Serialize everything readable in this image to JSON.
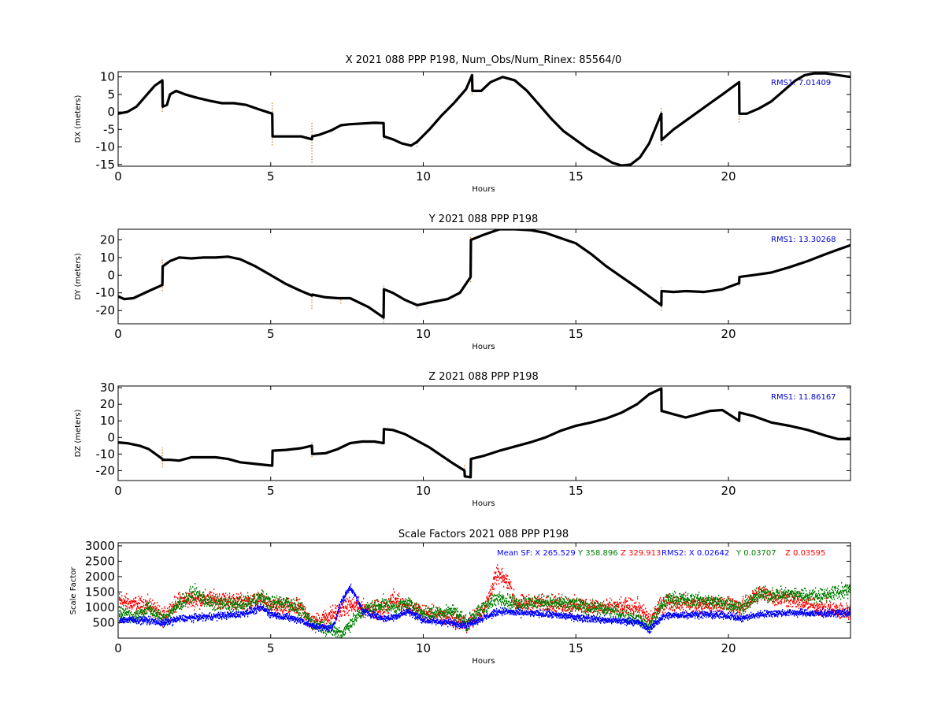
{
  "colors": {
    "line": "#000000",
    "outlier": "#cc7722",
    "rms": "#0000cc",
    "sf_x": "#0000ff",
    "sf_y": "#008000",
    "sf_z": "#ff0000"
  },
  "chart_data": [
    {
      "type": "line",
      "title": "X 2021 088 PPP  P198, Num_Obs/Num_Rinex: 85564/0",
      "xlabel": "Hours",
      "ylabel": "DX (meters)",
      "xlim": [
        0,
        24
      ],
      "ylim": [
        -15.5,
        11.5
      ],
      "xticks": [
        0,
        5,
        10,
        15,
        20
      ],
      "yticks": [
        -15,
        -10,
        -5,
        0,
        5,
        10
      ],
      "rms_label": "RMS1:  7.01409",
      "series": [
        {
          "x": [
            0,
            0.3,
            0.6,
            0.9,
            1.2,
            1.45,
            1.46,
            1.6,
            1.7,
            1.9,
            2.2,
            2.6,
            3.0,
            3.4,
            3.8,
            4.2,
            4.6,
            5.05,
            5.06,
            5.5,
            6.0,
            6.35,
            6.36,
            6.6,
            7.0,
            7.3,
            7.6,
            8.0,
            8.4,
            8.7,
            8.71,
            9.0,
            9.3,
            9.6,
            9.8,
            10.2,
            10.6,
            11.0,
            11.4,
            11.6,
            11.61,
            11.9,
            12.2,
            12.6,
            13.0,
            13.4,
            13.8,
            14.2,
            14.6,
            15.0,
            15.4,
            15.8,
            16.2,
            16.5,
            16.8,
            17.1,
            17.4,
            17.8,
            17.81,
            18.2,
            18.6,
            19.0,
            19.4,
            19.8,
            20.35,
            20.36,
            20.6,
            21.0,
            21.4,
            21.8,
            22.2,
            22.5,
            22.8,
            23.2,
            23.6,
            24
          ],
          "y": [
            -0.5,
            0,
            1.5,
            4.5,
            7.5,
            9,
            1.5,
            2,
            5,
            6,
            5,
            4,
            3.2,
            2.5,
            2.5,
            2,
            0.8,
            -0.5,
            -7,
            -7,
            -7,
            -7.8,
            -7,
            -6.5,
            -5.2,
            -3.8,
            -3.5,
            -3.3,
            -3.1,
            -3.2,
            -7,
            -7.8,
            -9,
            -9.6,
            -8.5,
            -5,
            -1,
            2.5,
            6.5,
            10.5,
            6,
            6,
            8.5,
            10,
            9,
            6,
            2,
            -2,
            -5.5,
            -8,
            -10.5,
            -12.5,
            -14.5,
            -15.3,
            -15,
            -13,
            -9,
            -0.5,
            -8,
            -5,
            -2.5,
            0,
            2.5,
            5,
            8.5,
            -0.5,
            -0.5,
            1,
            3,
            6,
            9,
            10.5,
            11,
            11,
            10.5,
            10
          ]
        }
      ],
      "outliers": [
        {
          "x": 1.45,
          "y": [
            0,
            9
          ]
        },
        {
          "x": 5.05,
          "y": [
            -9.5,
            3
          ]
        },
        {
          "x": 6.35,
          "y": [
            -14.5,
            -3
          ]
        },
        {
          "x": 8.7,
          "y": [
            -8,
            -3
          ]
        },
        {
          "x": 9.8,
          "y": [
            -10,
            -8
          ]
        },
        {
          "x": 11.6,
          "y": [
            5,
            11
          ]
        },
        {
          "x": 17.8,
          "y": [
            -9.5,
            1.5
          ]
        },
        {
          "x": 20.35,
          "y": [
            -3,
            5
          ]
        }
      ]
    },
    {
      "type": "line",
      "title": "Y 2021 088 PPP  P198",
      "xlabel": "Hours",
      "ylabel": "DY (meters)",
      "xlim": [
        0,
        24
      ],
      "ylim": [
        -27.5,
        26
      ],
      "xticks": [
        0,
        5,
        10,
        15,
        20
      ],
      "yticks": [
        -20,
        -10,
        0,
        10,
        20
      ],
      "rms_label": "RMS1: 13.30268",
      "series": [
        {
          "x": [
            0,
            0.2,
            0.5,
            1.0,
            1.45,
            1.46,
            1.7,
            2.0,
            2.4,
            2.8,
            3.2,
            3.6,
            4.0,
            4.5,
            5.0,
            5.5,
            6.0,
            6.35,
            6.36,
            6.8,
            7.2,
            7.6,
            8.2,
            8.7,
            8.71,
            9.0,
            9.4,
            9.8,
            10.2,
            10.8,
            11.2,
            11.55,
            11.56,
            12.0,
            12.5,
            13.0,
            13.5,
            14.0,
            14.5,
            15.0,
            15.5,
            16.0,
            16.5,
            17.0,
            17.4,
            17.8,
            17.81,
            18.2,
            18.6,
            19.2,
            19.8,
            20.35,
            20.36,
            20.8,
            21.4,
            22.0,
            22.6,
            23.2,
            23.6,
            24
          ],
          "y": [
            -12,
            -13.5,
            -13,
            -9,
            -5.5,
            5,
            8,
            10,
            9.5,
            10,
            10,
            10.5,
            9,
            5,
            0,
            -5,
            -9,
            -11.5,
            -11,
            -12.5,
            -13,
            -13,
            -18,
            -24,
            -8,
            -10,
            -14,
            -17,
            -15.5,
            -13.5,
            -10,
            -1,
            20,
            23,
            26,
            26,
            25.5,
            24,
            21,
            18,
            12,
            5,
            -1,
            -7,
            -12,
            -17,
            -9,
            -9.5,
            -9,
            -9.5,
            -8,
            -4.5,
            -1,
            0,
            1.5,
            4.5,
            8,
            12,
            14.5,
            17
          ]
        }
      ],
      "outliers": [
        {
          "x": 1.45,
          "y": [
            -9,
            9
          ]
        },
        {
          "x": 6.35,
          "y": [
            -19,
            -10
          ]
        },
        {
          "x": 7.3,
          "y": [
            -16,
            -13
          ]
        },
        {
          "x": 8.7,
          "y": [
            -27,
            -5
          ]
        },
        {
          "x": 9.8,
          "y": [
            -19,
            -16
          ]
        },
        {
          "x": 11.55,
          "y": [
            -4,
            22
          ]
        },
        {
          "x": 17.8,
          "y": [
            -20,
            -7
          ]
        },
        {
          "x": 20.35,
          "y": [
            -6,
            0
          ]
        }
      ]
    },
    {
      "type": "line",
      "title": "Z 2021 088 PPP  P198",
      "xlabel": "Hours",
      "ylabel": "DZ (meters)",
      "xlim": [
        0,
        24
      ],
      "ylim": [
        -26,
        31
      ],
      "xticks": [
        0,
        5,
        10,
        15,
        20
      ],
      "yticks": [
        -20,
        -10,
        0,
        10,
        20,
        30
      ],
      "rms_label": "RMS1: 11.86167",
      "series": [
        {
          "x": [
            0,
            0.3,
            0.7,
            1.0,
            1.45,
            1.46,
            1.7,
            2.0,
            2.4,
            2.8,
            3.2,
            3.6,
            4.0,
            4.5,
            5.05,
            5.06,
            5.5,
            6.0,
            6.35,
            6.36,
            6.8,
            7.2,
            7.6,
            8.0,
            8.4,
            8.7,
            8.71,
            9.0,
            9.4,
            9.8,
            10.2,
            10.6,
            11.0,
            11.35,
            11.36,
            11.55,
            11.56,
            12.0,
            12.5,
            13.0,
            13.5,
            14.0,
            14.5,
            15.0,
            15.5,
            16.0,
            16.5,
            17.0,
            17.4,
            17.8,
            17.81,
            18.2,
            18.6,
            19.0,
            19.4,
            19.8,
            20.35,
            20.36,
            20.8,
            21.4,
            22.0,
            22.6,
            23.2,
            23.6,
            24
          ],
          "y": [
            -3,
            -3.5,
            -5,
            -7,
            -13,
            -13.5,
            -13.5,
            -14,
            -12,
            -12,
            -12,
            -13,
            -15,
            -16,
            -17,
            -8,
            -7.5,
            -6.5,
            -5,
            -10,
            -9.5,
            -7,
            -3.5,
            -2.5,
            -2.5,
            -3.5,
            5,
            4.5,
            2,
            -2,
            -6,
            -11,
            -16,
            -20,
            -23.5,
            -24,
            -13,
            -11,
            -8,
            -5.5,
            -3,
            0,
            4,
            7,
            9,
            11.5,
            15,
            20,
            26,
            29.5,
            16,
            14,
            12,
            14,
            16,
            16.5,
            10,
            15,
            13,
            9,
            7,
            4.5,
            1,
            -1,
            -1
          ]
        }
      ],
      "outliers": [
        {
          "x": 1.45,
          "y": [
            -18,
            -6
          ]
        },
        {
          "x": 5.05,
          "y": [
            -17,
            -7
          ]
        },
        {
          "x": 6.35,
          "y": [
            -12,
            -3
          ]
        },
        {
          "x": 8.7,
          "y": [
            -4,
            6
          ]
        },
        {
          "x": 11.35,
          "y": [
            -24,
            -16
          ]
        },
        {
          "x": 17.8,
          "y": [
            15,
            30
          ]
        },
        {
          "x": 20.35,
          "y": [
            10,
            16
          ]
        }
      ]
    },
    {
      "type": "scatter",
      "title": "Scale Factors 2021 088 PPP  P198",
      "xlabel": "Hours",
      "ylabel": "Scale Factor",
      "xlim": [
        0,
        24
      ],
      "ylim": [
        0,
        3100
      ],
      "xticks": [
        0,
        5,
        10,
        15,
        20
      ],
      "yticks": [
        500,
        1000,
        1500,
        2000,
        2500,
        3000
      ],
      "annotation": {
        "mean_sf": "Mean SF: X 265.529",
        "y_sf": "Y 358.896",
        "z_sf": "Z 329.913",
        "rms2": "RMS2: X  0.02642",
        "y_rms": "Y  0.03707",
        "z_rms": "Z  0.03595"
      },
      "series": [
        {
          "name": "X",
          "x": [
            0,
            1,
            1.45,
            2,
            3,
            4,
            4.7,
            5,
            6,
            6.35,
            7,
            7.3,
            7.6,
            8,
            8.7,
            9,
            9.5,
            10,
            11,
            11.4,
            12,
            12.5,
            13,
            14,
            15,
            16,
            17,
            17.4,
            17.8,
            18,
            19,
            20,
            20.4,
            21,
            22,
            23,
            24
          ],
          "y": [
            620,
            600,
            500,
            650,
            720,
            800,
            1000,
            800,
            600,
            400,
            350,
            1200,
            1700,
            900,
            650,
            700,
            900,
            600,
            500,
            450,
            700,
            900,
            850,
            800,
            700,
            600,
            550,
            300,
            700,
            750,
            800,
            750,
            650,
            800,
            850,
            820,
            850
          ]
        },
        {
          "name": "Y",
          "x": [
            0,
            0.5,
            1,
            1.45,
            2,
            2.5,
            3,
            4,
            4.7,
            5,
            5.5,
            6,
            6.35,
            7,
            7.3,
            7.6,
            8,
            8.7,
            9,
            9.5,
            10,
            11,
            11.4,
            12,
            12.5,
            13,
            14,
            15,
            16,
            16.5,
            17,
            17.4,
            17.8,
            18,
            19,
            20,
            20.4,
            21,
            22,
            23,
            24
          ],
          "y": [
            900,
            700,
            1000,
            600,
            1150,
            1500,
            1150,
            1100,
            1350,
            1150,
            1200,
            900,
            500,
            300,
            150,
            500,
            900,
            1150,
            1000,
            1150,
            800,
            900,
            500,
            1050,
            1350,
            1150,
            1200,
            1100,
            950,
            800,
            650,
            400,
            1100,
            1300,
            1250,
            1150,
            1000,
            1450,
            1450,
            1400,
            1600
          ]
        },
        {
          "name": "Z",
          "x": [
            0,
            0.5,
            1,
            1.45,
            2,
            3,
            4,
            4.7,
            5,
            6,
            6.35,
            7,
            7.6,
            8,
            8.7,
            9,
            9.5,
            10,
            11,
            11.4,
            12,
            12.4,
            12.8,
            13,
            14,
            15,
            16,
            17,
            17.4,
            17.8,
            18,
            19,
            20,
            20.4,
            21,
            21.5,
            22,
            23,
            24
          ],
          "y": [
            1250,
            1100,
            1100,
            700,
            1250,
            1300,
            1200,
            1250,
            1050,
            1000,
            500,
            800,
            1100,
            1000,
            950,
            1300,
            1050,
            850,
            650,
            450,
            1000,
            2100,
            1800,
            1150,
            1150,
            1100,
            1000,
            1050,
            600,
            1100,
            1200,
            1100,
            1100,
            1000,
            1500,
            1350,
            1300,
            1000,
            850
          ]
        }
      ]
    }
  ]
}
